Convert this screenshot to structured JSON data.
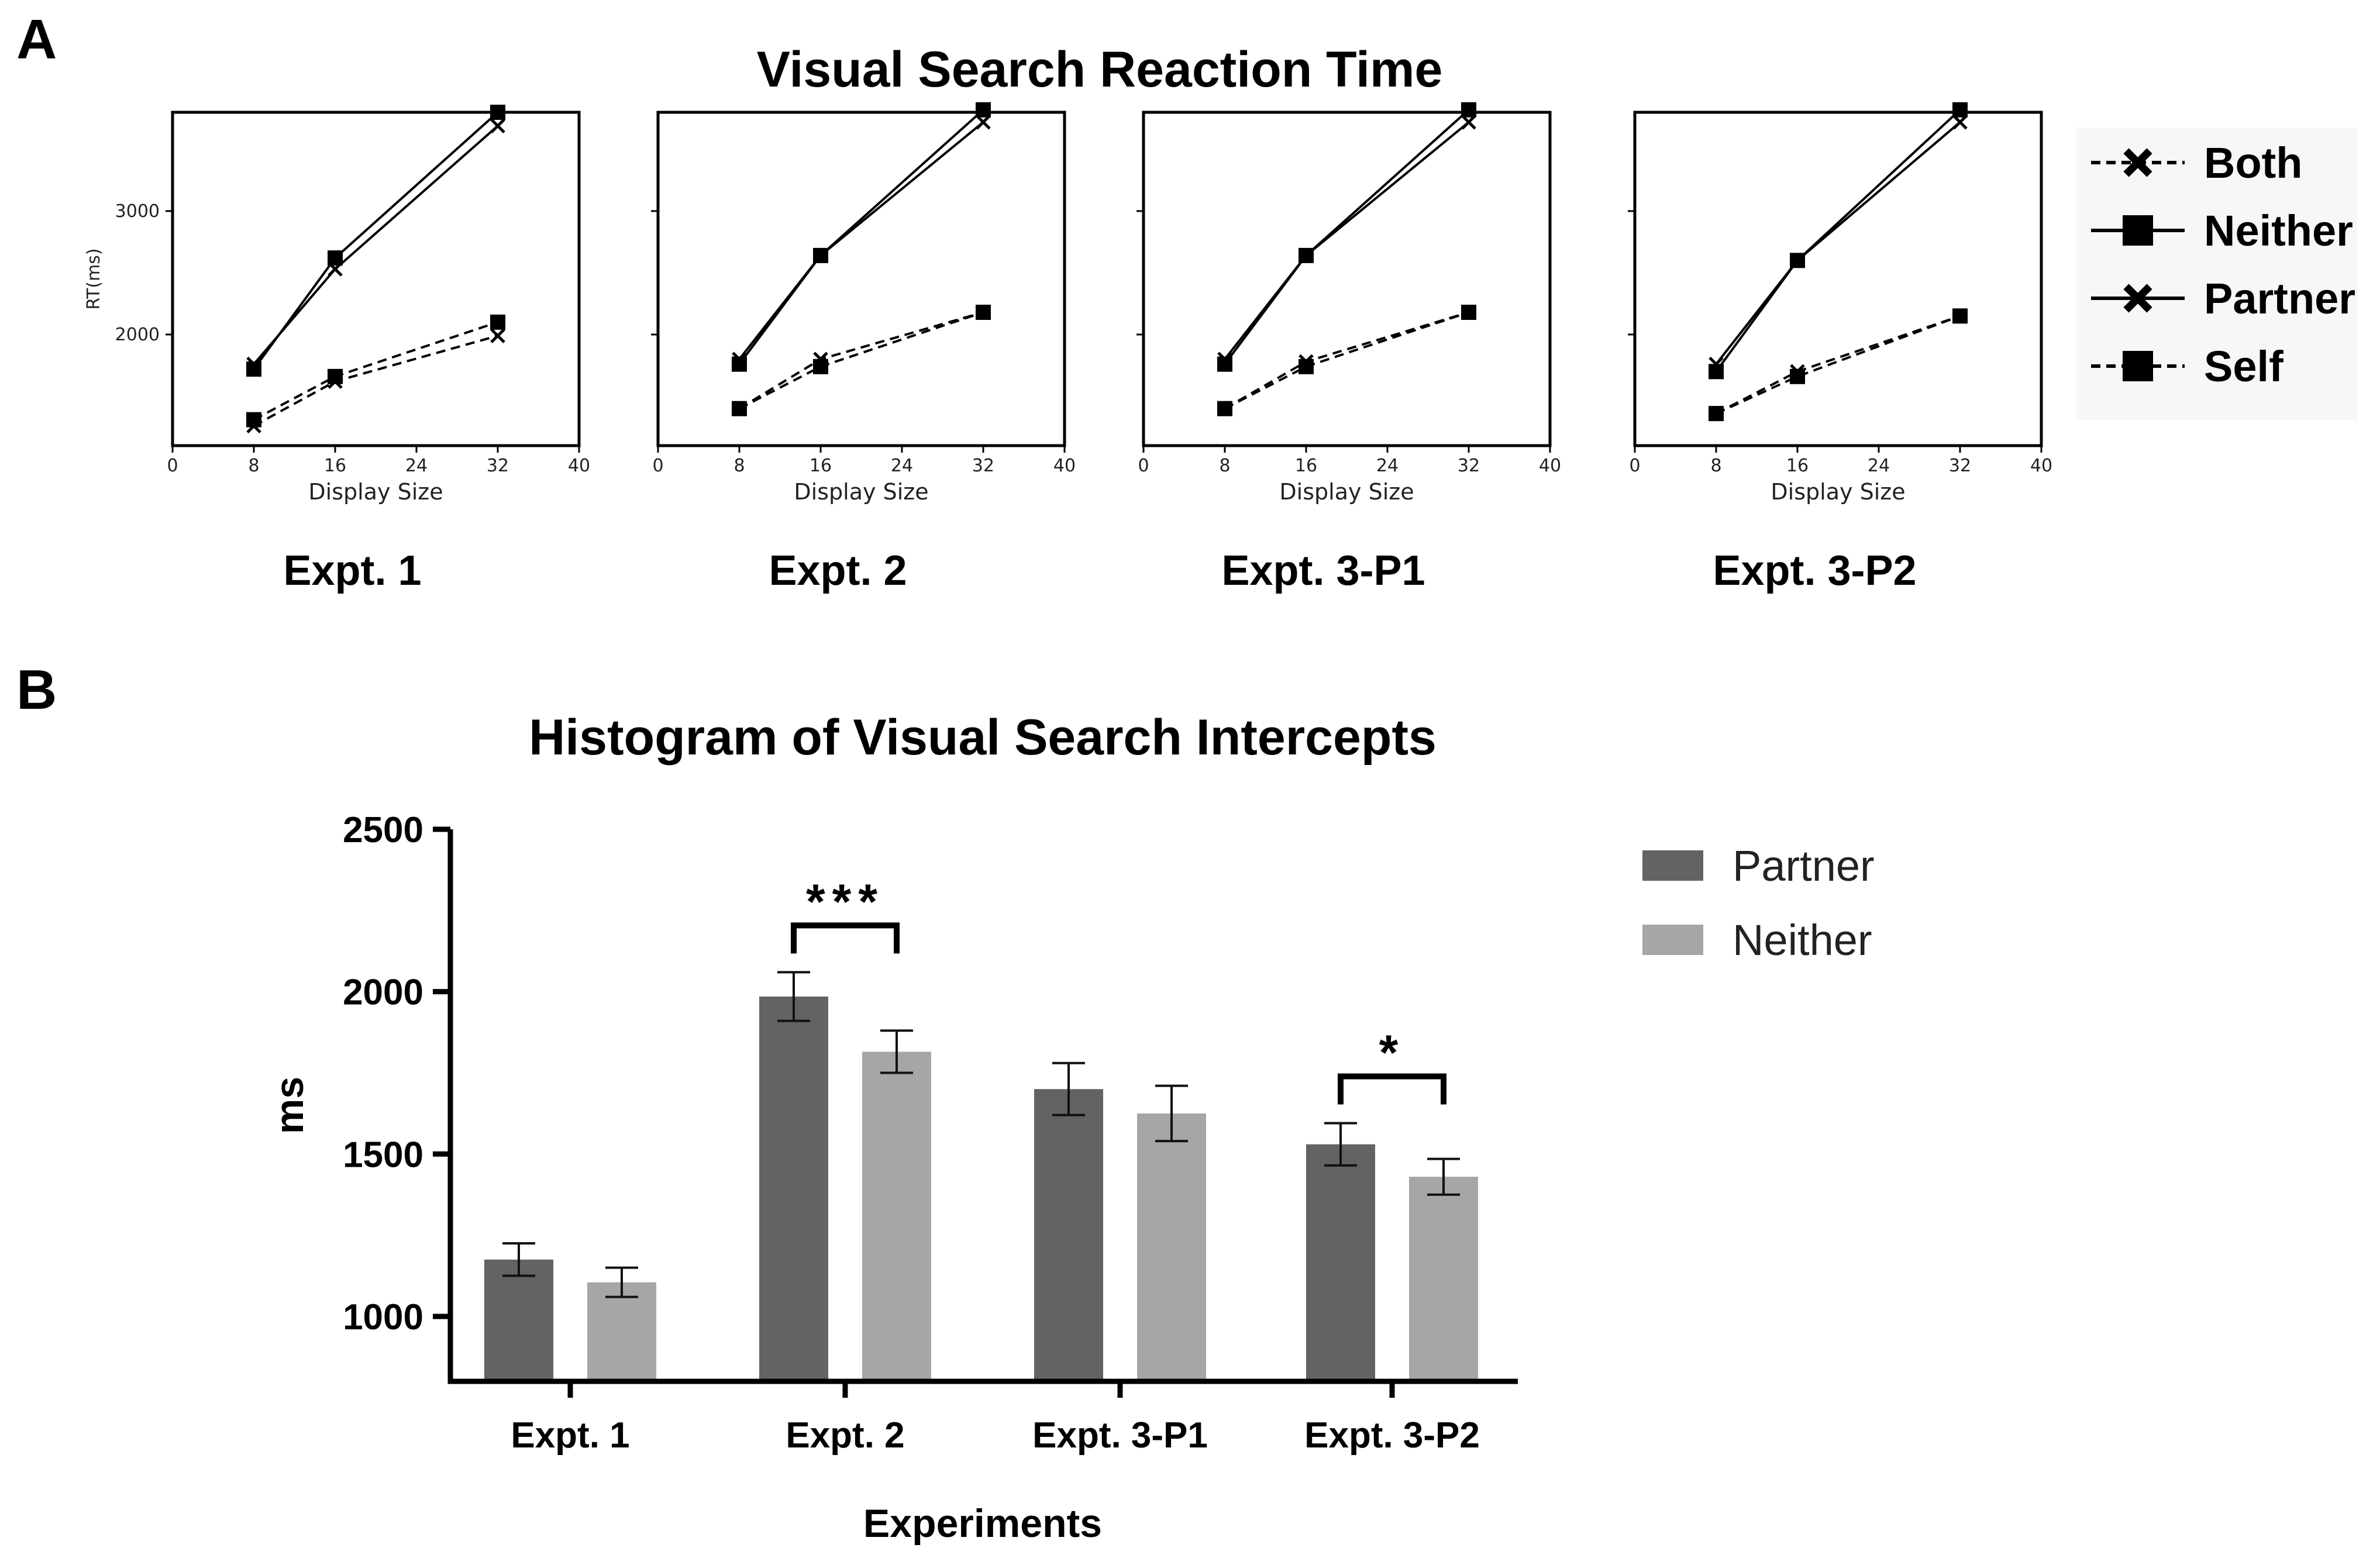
{
  "panel_labels": {
    "a": "A",
    "b": "B"
  },
  "chart_data": [
    {
      "panel": "A",
      "type": "line",
      "title": "Visual Search Reaction Time",
      "xlabel": "Display Size",
      "ylabel": "RT(ms)",
      "xticks": [
        0,
        8,
        16,
        24,
        32,
        40
      ],
      "yticks": [
        2000,
        3000
      ],
      "xlim": [
        0,
        40
      ],
      "ylim": [
        1100,
        3800
      ],
      "legend": [
        {
          "name": "Both",
          "line": "dashed",
          "marker": "x"
        },
        {
          "name": "Neither",
          "line": "solid",
          "marker": "square"
        },
        {
          "name": "Partner",
          "line": "solid",
          "marker": "x"
        },
        {
          "name": "Self",
          "line": "dashed",
          "marker": "square"
        }
      ],
      "legend_position": "right",
      "subplots": [
        {
          "caption": "Expt. 1",
          "x": [
            8,
            16,
            32
          ],
          "series": [
            {
              "name": "Neither",
              "values": [
                1720,
                2620,
                3800
              ]
            },
            {
              "name": "Partner",
              "values": [
                1760,
                2530,
                3690
              ]
            },
            {
              "name": "Self",
              "values": [
                1310,
                1660,
                2100
              ]
            },
            {
              "name": "Both",
              "values": [
                1260,
                1620,
                1990
              ]
            }
          ]
        },
        {
          "caption": "Expt. 2",
          "x": [
            8,
            16,
            32
          ],
          "series": [
            {
              "name": "Neither",
              "values": [
                1760,
                2640,
                3820
              ]
            },
            {
              "name": "Partner",
              "values": [
                1800,
                2640,
                3720
              ]
            },
            {
              "name": "Self",
              "values": [
                1400,
                1740,
                2180
              ]
            },
            {
              "name": "Both",
              "values": [
                1400,
                1800,
                2180
              ]
            }
          ]
        },
        {
          "caption": "Expt. 3-P1",
          "x": [
            8,
            16,
            32
          ],
          "series": [
            {
              "name": "Neither",
              "values": [
                1760,
                2640,
                3820
              ]
            },
            {
              "name": "Partner",
              "values": [
                1800,
                2640,
                3720
              ]
            },
            {
              "name": "Self",
              "values": [
                1400,
                1740,
                2180
              ]
            },
            {
              "name": "Both",
              "values": [
                1400,
                1780,
                2180
              ]
            }
          ]
        },
        {
          "caption": "Expt. 3-P2",
          "x": [
            8,
            16,
            32
          ],
          "series": [
            {
              "name": "Neither",
              "values": [
                1700,
                2600,
                3820
              ]
            },
            {
              "name": "Partner",
              "values": [
                1760,
                2600,
                3720
              ]
            },
            {
              "name": "Self",
              "values": [
                1360,
                1660,
                2150
              ]
            },
            {
              "name": "Both",
              "values": [
                1360,
                1700,
                2150
              ]
            }
          ]
        }
      ]
    },
    {
      "panel": "B",
      "type": "bar",
      "title": "Histogram of Visual Search Intercepts",
      "xlabel": "Experiments",
      "ylabel": "ms",
      "categories": [
        "Expt. 1",
        "Expt. 2",
        "Expt. 3-P1",
        "Expt. 3-P2"
      ],
      "ylim": [
        800,
        2500
      ],
      "yticks": [
        1000,
        1500,
        2000,
        2500
      ],
      "series": [
        {
          "name": "Partner",
          "color": "#636363",
          "values": [
            1175,
            1985,
            1700,
            1530
          ],
          "errors": [
            50,
            75,
            80,
            65
          ]
        },
        {
          "name": "Neither",
          "color": "#a6a6a6",
          "values": [
            1105,
            1815,
            1625,
            1430
          ],
          "errors": [
            45,
            65,
            85,
            55
          ]
        }
      ],
      "legend_position": "top-right",
      "significance": [
        {
          "category": "Expt. 2",
          "label": "***"
        },
        {
          "category": "Expt. 3-P2",
          "label": "*"
        }
      ]
    }
  ]
}
